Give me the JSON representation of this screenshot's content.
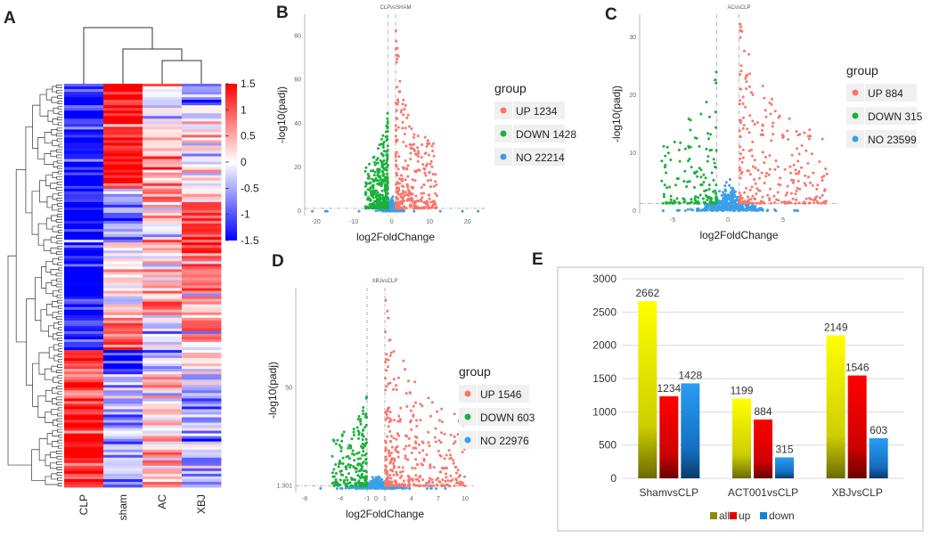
{
  "panels": {
    "A": "A",
    "B": "B",
    "C": "C",
    "D": "D",
    "E": "E"
  },
  "colors": {
    "up": "#f8766d",
    "down": "#1cb03c",
    "no": "#3c9ee8",
    "heat_high": "#ff0000",
    "heat_mid": "#ffffff",
    "heat_low": "#0000ff",
    "bar_all": "#e6e600",
    "bar_up": "#e60000",
    "bar_down": "#1a7fd9"
  },
  "chart_data": [
    {
      "id": "A",
      "type": "heatmap",
      "samples": [
        "CLP",
        "sham",
        "AC",
        "XBJ"
      ],
      "colorbar": {
        "ticks": [
          1.5,
          1,
          0.5,
          0,
          -0.5,
          -1,
          -1.5
        ],
        "tick_labels": [
          "1.5",
          "1",
          "0.5",
          "0",
          "-0.5",
          "-1",
          "-1.5"
        ],
        "range": [
          -1.5,
          1.5
        ]
      },
      "column_dendrogram": "(CLP,(sham,(AC,XBJ)))"
    },
    {
      "id": "B",
      "type": "scatter",
      "title": "CLPvsSHAM",
      "xlabel": "log2FoldChange",
      "ylabel": "-log10(padj)",
      "xticks": [
        -20,
        -10,
        0,
        10,
        20
      ],
      "yticks": [
        0,
        20,
        40,
        60,
        80
      ],
      "xlim": [
        -23,
        25
      ],
      "ylim": [
        -2,
        90
      ],
      "thresholds": {
        "x": [
          -1,
          1
        ],
        "y": 1.301
      },
      "legend": {
        "title": "group",
        "entries": [
          "UP 1234",
          "DOWN 1428",
          "NO 22214"
        ]
      },
      "series": [
        {
          "name": "UP",
          "count": 1234,
          "x_range": [
            1,
            12
          ],
          "y_max": 85
        },
        {
          "name": "DOWN",
          "count": 1428,
          "x_range": [
            -7,
            -1
          ],
          "y_max": 45
        },
        {
          "name": "NO",
          "count": 22214,
          "x_range": [
            -21,
            23
          ],
          "y_max": 8
        }
      ]
    },
    {
      "id": "C",
      "type": "scatter",
      "title": "ACvsCLP",
      "xlabel": "log2FoldChange",
      "ylabel": "-log10(padj)",
      "xticks": [
        -5,
        0,
        5
      ],
      "yticks": [
        0,
        10,
        20,
        30
      ],
      "xlim": [
        -8,
        10
      ],
      "ylim": [
        -0.5,
        34
      ],
      "thresholds": {
        "x": [
          -1,
          1
        ],
        "y": 1.301
      },
      "legend": {
        "title": "group",
        "entries": [
          "UP 884",
          "DOWN 315",
          "NO 23599"
        ]
      },
      "series": [
        {
          "name": "UP",
          "count": 884,
          "x_range": [
            1,
            9
          ],
          "y_max": 32
        },
        {
          "name": "DOWN",
          "count": 315,
          "x_range": [
            -6,
            -1
          ],
          "y_max": 24
        },
        {
          "name": "NO",
          "count": 23599,
          "x_range": [
            -7,
            7
          ],
          "y_max": 6
        }
      ]
    },
    {
      "id": "D",
      "type": "scatter",
      "title": "XBJvsCLP",
      "xlabel": "log2FoldChange",
      "ylabel": "-log10(padj)",
      "xticks": [
        -8,
        -4,
        -1,
        0,
        1,
        4,
        7,
        10
      ],
      "ytick_labels": [
        "1.301",
        "50"
      ],
      "xlim": [
        -9,
        11
      ],
      "ylim": [
        -2,
        100
      ],
      "thresholds": {
        "x": [
          -1,
          1
        ],
        "y": 1.301
      },
      "legend": {
        "title": "group",
        "entries": [
          "UP 1546",
          "DOWN 603",
          "NO 22976"
        ]
      },
      "series": [
        {
          "name": "UP",
          "count": 1546,
          "x_range": [
            1,
            10
          ],
          "y_max": 95
        },
        {
          "name": "DOWN",
          "count": 603,
          "x_range": [
            -5,
            -1
          ],
          "y_max": 45
        },
        {
          "name": "NO",
          "count": 22976,
          "x_range": [
            -8,
            9
          ],
          "y_max": 8
        }
      ]
    },
    {
      "id": "E",
      "type": "bar",
      "categories": [
        "ShamvsCLP",
        "ACT001vsCLP",
        "XBJvsCLP"
      ],
      "series": [
        {
          "name": "all",
          "values": [
            2662,
            1199,
            2149
          ]
        },
        {
          "name": "up",
          "values": [
            1234,
            884,
            1546
          ]
        },
        {
          "name": "down",
          "values": [
            1428,
            315,
            603
          ]
        }
      ],
      "yticks": [
        0,
        500,
        1000,
        1500,
        2000,
        2500,
        3000
      ],
      "ylim": [
        0,
        3000
      ],
      "legend": [
        "all",
        "up",
        "down"
      ],
      "legend_position": "bottom"
    }
  ]
}
